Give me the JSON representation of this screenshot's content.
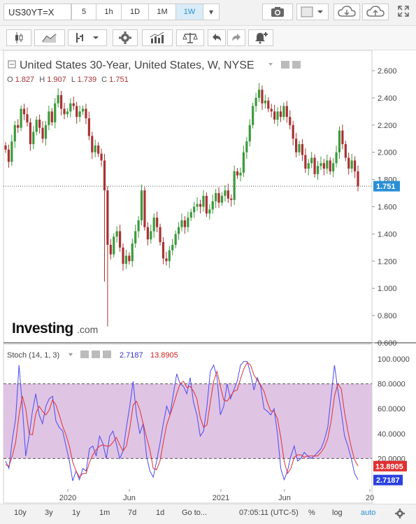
{
  "toolbar": {
    "symbol": "US30YT=X",
    "timeframes": [
      "5",
      "1h",
      "1D",
      "1M",
      "1W"
    ],
    "active_timeframe": "1W",
    "dropdown_caret": "▾"
  },
  "tools": {
    "icons": [
      "candles-icon",
      "line-chart-icon",
      "bars-icon",
      "indicators-gear-icon",
      "studies-icon",
      "balance-icon",
      "undo-icon",
      "redo-icon",
      "alert-icon"
    ],
    "camera_icon": "camera-icon",
    "color_icon": "color-square-icon",
    "cloud_down_icon": "cloud-download-icon",
    "cloud_up_icon": "cloud-upload-icon",
    "fullscreen_icon": "fullscreen-icon"
  },
  "legend": {
    "title": "United States 30-Year, United States, W, NYSE",
    "ohlc": {
      "O": "1.827",
      "H": "1.907",
      "L": "1.739",
      "C": "1.751"
    }
  },
  "stoch": {
    "label": "Stoch (14, 1, 3)",
    "k_value": "2.7187",
    "d_value": "13.8905"
  },
  "brand": {
    "text": "Investing",
    "suffix": ".com"
  },
  "bottom": {
    "ranges": [
      "10y",
      "3y",
      "1y",
      "1m",
      "7d",
      "1d",
      "Go to..."
    ],
    "time": "07:05:11 (UTC-5)",
    "pct": "%",
    "log": "log",
    "auto": "auto"
  },
  "colors": {
    "up": "#3c9a3c",
    "down": "#a83232",
    "k_line": "#4b4bf0",
    "d_line": "#e03030",
    "band": "#e0c4e4",
    "accent": "#2a8fd6"
  },
  "chart_data": {
    "type": "candlestick",
    "price_axis": {
      "ticks": [
        "2.600",
        "2.400",
        "2.200",
        "2.000",
        "1.800",
        "1.600",
        "1.400",
        "1.200",
        "1.000",
        "0.800",
        "0.600"
      ],
      "last_price": "1.751"
    },
    "stoch_axis": {
      "ticks": [
        "100.0000",
        "80.0000",
        "60.0000",
        "40.0000",
        "20.0000"
      ]
    },
    "time_axis": {
      "ticks": [
        "2020",
        "Jun",
        "2021",
        "Jun",
        "20"
      ]
    },
    "close": [
      2.02,
      1.93,
      2.08,
      2.2,
      2.18,
      2.32,
      2.28,
      2.22,
      2.06,
      2.15,
      2.24,
      2.18,
      2.1,
      2.2,
      2.3,
      2.22,
      2.36,
      2.42,
      2.32,
      2.28,
      2.3,
      2.36,
      2.34,
      2.26,
      2.3,
      2.32,
      2.25,
      2.12,
      2.0,
      2.05,
      1.99,
      1.94,
      1.72,
      1.32,
      1.25,
      1.38,
      1.42,
      1.3,
      1.18,
      1.24,
      1.2,
      1.33,
      1.42,
      1.5,
      1.72,
      1.45,
      1.36,
      1.42,
      1.52,
      1.45,
      1.34,
      1.22,
      1.2,
      1.28,
      1.32,
      1.4,
      1.45,
      1.5,
      1.45,
      1.52,
      1.56,
      1.6,
      1.62,
      1.6,
      1.68,
      1.55,
      1.58,
      1.64,
      1.7,
      1.63,
      1.68,
      1.72,
      1.66,
      1.65,
      1.86,
      1.83,
      1.85,
      2.0,
      2.08,
      2.2,
      2.34,
      2.4,
      2.46,
      2.36,
      2.38,
      2.32,
      2.3,
      2.24,
      2.3,
      2.26,
      2.34,
      2.26,
      2.2,
      2.1,
      2.0,
      2.06,
      1.98,
      1.88,
      1.92,
      1.96,
      1.84,
      1.9,
      1.92,
      1.88,
      1.94,
      1.86,
      1.92,
      2.0,
      2.16,
      2.06,
      1.96,
      1.88,
      1.94,
      1.86,
      1.75
    ],
    "k": [
      18,
      12,
      35,
      52,
      95,
      62,
      22,
      38,
      58,
      72,
      55,
      48,
      62,
      68,
      70,
      50,
      45,
      42,
      30,
      18,
      2,
      10,
      3,
      12,
      10,
      28,
      30,
      22,
      38,
      32,
      20,
      38,
      42,
      32,
      20,
      26,
      45,
      62,
      82,
      55,
      40,
      48,
      22,
      10,
      5,
      18,
      32,
      48,
      62,
      55,
      72,
      88,
      80,
      78,
      72,
      85,
      65,
      55,
      38,
      42,
      62,
      90,
      95,
      85,
      55,
      62,
      80,
      68,
      75,
      82,
      95,
      98,
      98,
      88,
      75,
      85,
      78,
      60,
      58,
      55,
      60,
      40,
      12,
      3,
      10,
      22,
      30,
      18,
      20,
      25,
      22,
      20,
      22,
      25,
      28,
      35,
      45,
      70,
      95,
      75,
      58,
      38,
      30,
      20,
      8,
      3
    ],
    "d": [
      15,
      14,
      22,
      33,
      55,
      70,
      60,
      40,
      39,
      56,
      62,
      58,
      55,
      59,
      67,
      63,
      55,
      46,
      39,
      30,
      17,
      10,
      5,
      8,
      8,
      17,
      23,
      27,
      30,
      31,
      30,
      30,
      33,
      37,
      31,
      26,
      30,
      44,
      63,
      66,
      59,
      48,
      37,
      27,
      12,
      11,
      18,
      33,
      47,
      55,
      63,
      72,
      80,
      82,
      77,
      78,
      74,
      68,
      53,
      45,
      47,
      65,
      82,
      90,
      78,
      67,
      66,
      70,
      74,
      75,
      84,
      92,
      97,
      95,
      87,
      83,
      79,
      74,
      65,
      58,
      58,
      52,
      37,
      18,
      8,
      12,
      21,
      23,
      23,
      21,
      22,
      22,
      22,
      22,
      25,
      29,
      36,
      50,
      70,
      80,
      76,
      57,
      42,
      29,
      19,
      14
    ]
  }
}
